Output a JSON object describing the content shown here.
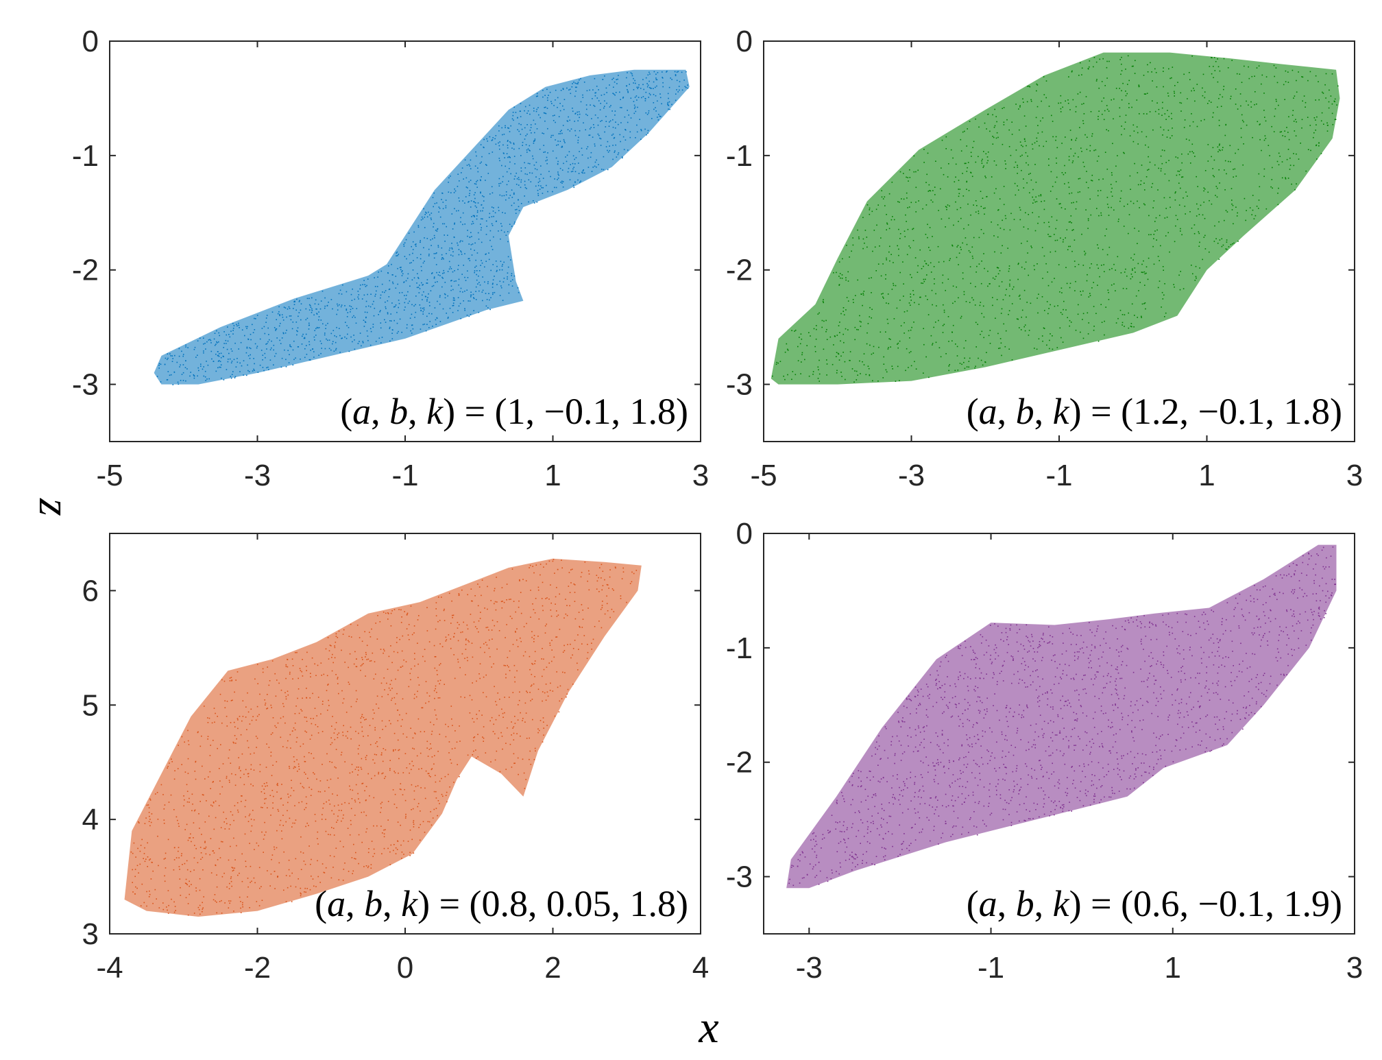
{
  "figure": {
    "xlabel": "x",
    "ylabel": "z"
  },
  "chart_data": [
    {
      "type": "scatter",
      "xlim": [
        -5,
        3
      ],
      "ylim": [
        -3.5,
        0
      ],
      "xticks": [
        "-5",
        "-3",
        "-1",
        "1",
        "3"
      ],
      "yticks": [
        "0",
        "-1",
        "-2",
        "-3"
      ],
      "color": "#0072BD",
      "annotation": {
        "pre": "(",
        "v1": "a",
        "s1": ", ",
        "v2": "b",
        "s2": ", ",
        "v3": "k",
        "post": ") = (1, −0.1, 1.8)"
      },
      "outline": [
        [
          -4.4,
          -2.9
        ],
        [
          -4.3,
          -2.75
        ],
        [
          -3.5,
          -2.5
        ],
        [
          -2.5,
          -2.25
        ],
        [
          -1.5,
          -2.05
        ],
        [
          -1.25,
          -1.95
        ],
        [
          -0.9,
          -1.6
        ],
        [
          -0.6,
          -1.3
        ],
        [
          -0.1,
          -0.95
        ],
        [
          0.4,
          -0.6
        ],
        [
          0.9,
          -0.4
        ],
        [
          1.5,
          -0.3
        ],
        [
          2.1,
          -0.25
        ],
        [
          2.8,
          -0.25
        ],
        [
          2.85,
          -0.4
        ],
        [
          2.3,
          -0.8
        ],
        [
          1.8,
          -1.1
        ],
        [
          1.2,
          -1.3
        ],
        [
          0.6,
          -1.45
        ],
        [
          0.4,
          -1.7
        ],
        [
          0.5,
          -2.1
        ],
        [
          0.6,
          -2.27
        ],
        [
          0.1,
          -2.35
        ],
        [
          -1.0,
          -2.6
        ],
        [
          -2.0,
          -2.75
        ],
        [
          -3.0,
          -2.9
        ],
        [
          -3.8,
          -3.0
        ],
        [
          -4.3,
          -3.0
        ]
      ]
    },
    {
      "type": "scatter",
      "xlim": [
        -5,
        3
      ],
      "ylim": [
        -3.5,
        0
      ],
      "xticks": [
        "-5",
        "-3",
        "-1",
        "1",
        "3"
      ],
      "yticks": [
        "0",
        "-1",
        "-2",
        "-3"
      ],
      "color": "#007F00",
      "annotation": {
        "pre": "(",
        "v1": "a",
        "s1": ", ",
        "v2": "b",
        "s2": ", ",
        "v3": "k",
        "post": ") = (1.2, −0.1, 1.8)"
      },
      "outline": [
        [
          -4.9,
          -2.95
        ],
        [
          -4.8,
          -2.6
        ],
        [
          -4.3,
          -2.3
        ],
        [
          -4.0,
          -1.9
        ],
        [
          -3.6,
          -1.4
        ],
        [
          -2.9,
          -0.95
        ],
        [
          -2.0,
          -0.6
        ],
        [
          -1.2,
          -0.3
        ],
        [
          -0.4,
          -0.1
        ],
        [
          0.5,
          -0.1
        ],
        [
          1.3,
          -0.15
        ],
        [
          2.0,
          -0.2
        ],
        [
          2.75,
          -0.25
        ],
        [
          2.8,
          -0.5
        ],
        [
          2.7,
          -0.85
        ],
        [
          2.2,
          -1.3
        ],
        [
          1.5,
          -1.7
        ],
        [
          1.0,
          -2.0
        ],
        [
          0.6,
          -2.4
        ],
        [
          0.0,
          -2.55
        ],
        [
          -1.0,
          -2.7
        ],
        [
          -2.0,
          -2.85
        ],
        [
          -3.0,
          -2.97
        ],
        [
          -4.0,
          -3.0
        ],
        [
          -4.8,
          -3.0
        ]
      ]
    },
    {
      "type": "scatter",
      "xlim": [
        -4,
        4
      ],
      "ylim": [
        3,
        6.5
      ],
      "xticks": [
        "-4",
        "-2",
        "0",
        "2",
        "4"
      ],
      "yticks": [
        "6",
        "5",
        "4",
        "3"
      ],
      "color": "#D95319",
      "annotation": {
        "pre": "(",
        "v1": "a",
        "s1": ", ",
        "v2": "b",
        "s2": ", ",
        "v3": "k",
        "post": ") = (0.8, 0.05, 1.8)"
      },
      "outline": [
        [
          -3.8,
          3.3
        ],
        [
          -3.7,
          3.9
        ],
        [
          -3.3,
          4.4
        ],
        [
          -2.9,
          4.9
        ],
        [
          -2.4,
          5.3
        ],
        [
          -1.8,
          5.4
        ],
        [
          -1.2,
          5.55
        ],
        [
          -0.5,
          5.8
        ],
        [
          0.2,
          5.9
        ],
        [
          0.8,
          6.05
        ],
        [
          1.4,
          6.2
        ],
        [
          2.0,
          6.28
        ],
        [
          2.7,
          6.25
        ],
        [
          3.2,
          6.22
        ],
        [
          3.15,
          6.0
        ],
        [
          2.7,
          5.6
        ],
        [
          2.2,
          5.1
        ],
        [
          1.8,
          4.6
        ],
        [
          1.6,
          4.2
        ],
        [
          1.3,
          4.4
        ],
        [
          0.9,
          4.55
        ],
        [
          0.7,
          4.35
        ],
        [
          0.5,
          4.05
        ],
        [
          0.1,
          3.7
        ],
        [
          -0.5,
          3.5
        ],
        [
          -1.2,
          3.35
        ],
        [
          -2.0,
          3.2
        ],
        [
          -2.8,
          3.15
        ],
        [
          -3.5,
          3.2
        ]
      ]
    },
    {
      "type": "scatter",
      "xlim": [
        -3.5,
        3
      ],
      "ylim": [
        -3.5,
        0
      ],
      "xticks": [
        "-3",
        "-1",
        "1",
        "3"
      ],
      "yticks": [
        "0",
        "-1",
        "-2",
        "-3"
      ],
      "color": "#7E2F8E",
      "annotation": {
        "pre": "(",
        "v1": "a",
        "s1": ", ",
        "v2": "b",
        "s2": ", ",
        "v3": "k",
        "post": ") = (0.6, −0.1, 1.9)"
      },
      "outline": [
        [
          -3.25,
          -3.1
        ],
        [
          -3.2,
          -2.85
        ],
        [
          -2.7,
          -2.3
        ],
        [
          -2.2,
          -1.7
        ],
        [
          -1.6,
          -1.1
        ],
        [
          -1.0,
          -0.78
        ],
        [
          -0.3,
          -0.8
        ],
        [
          0.3,
          -0.75
        ],
        [
          0.8,
          -0.7
        ],
        [
          1.4,
          -0.65
        ],
        [
          2.0,
          -0.4
        ],
        [
          2.6,
          -0.1
        ],
        [
          2.8,
          -0.1
        ],
        [
          2.8,
          -0.5
        ],
        [
          2.5,
          -1.0
        ],
        [
          2.0,
          -1.5
        ],
        [
          1.6,
          -1.85
        ],
        [
          0.9,
          -2.05
        ],
        [
          0.5,
          -2.3
        ],
        [
          -0.5,
          -2.5
        ],
        [
          -1.5,
          -2.7
        ],
        [
          -2.5,
          -2.95
        ],
        [
          -3.0,
          -3.1
        ]
      ]
    }
  ]
}
